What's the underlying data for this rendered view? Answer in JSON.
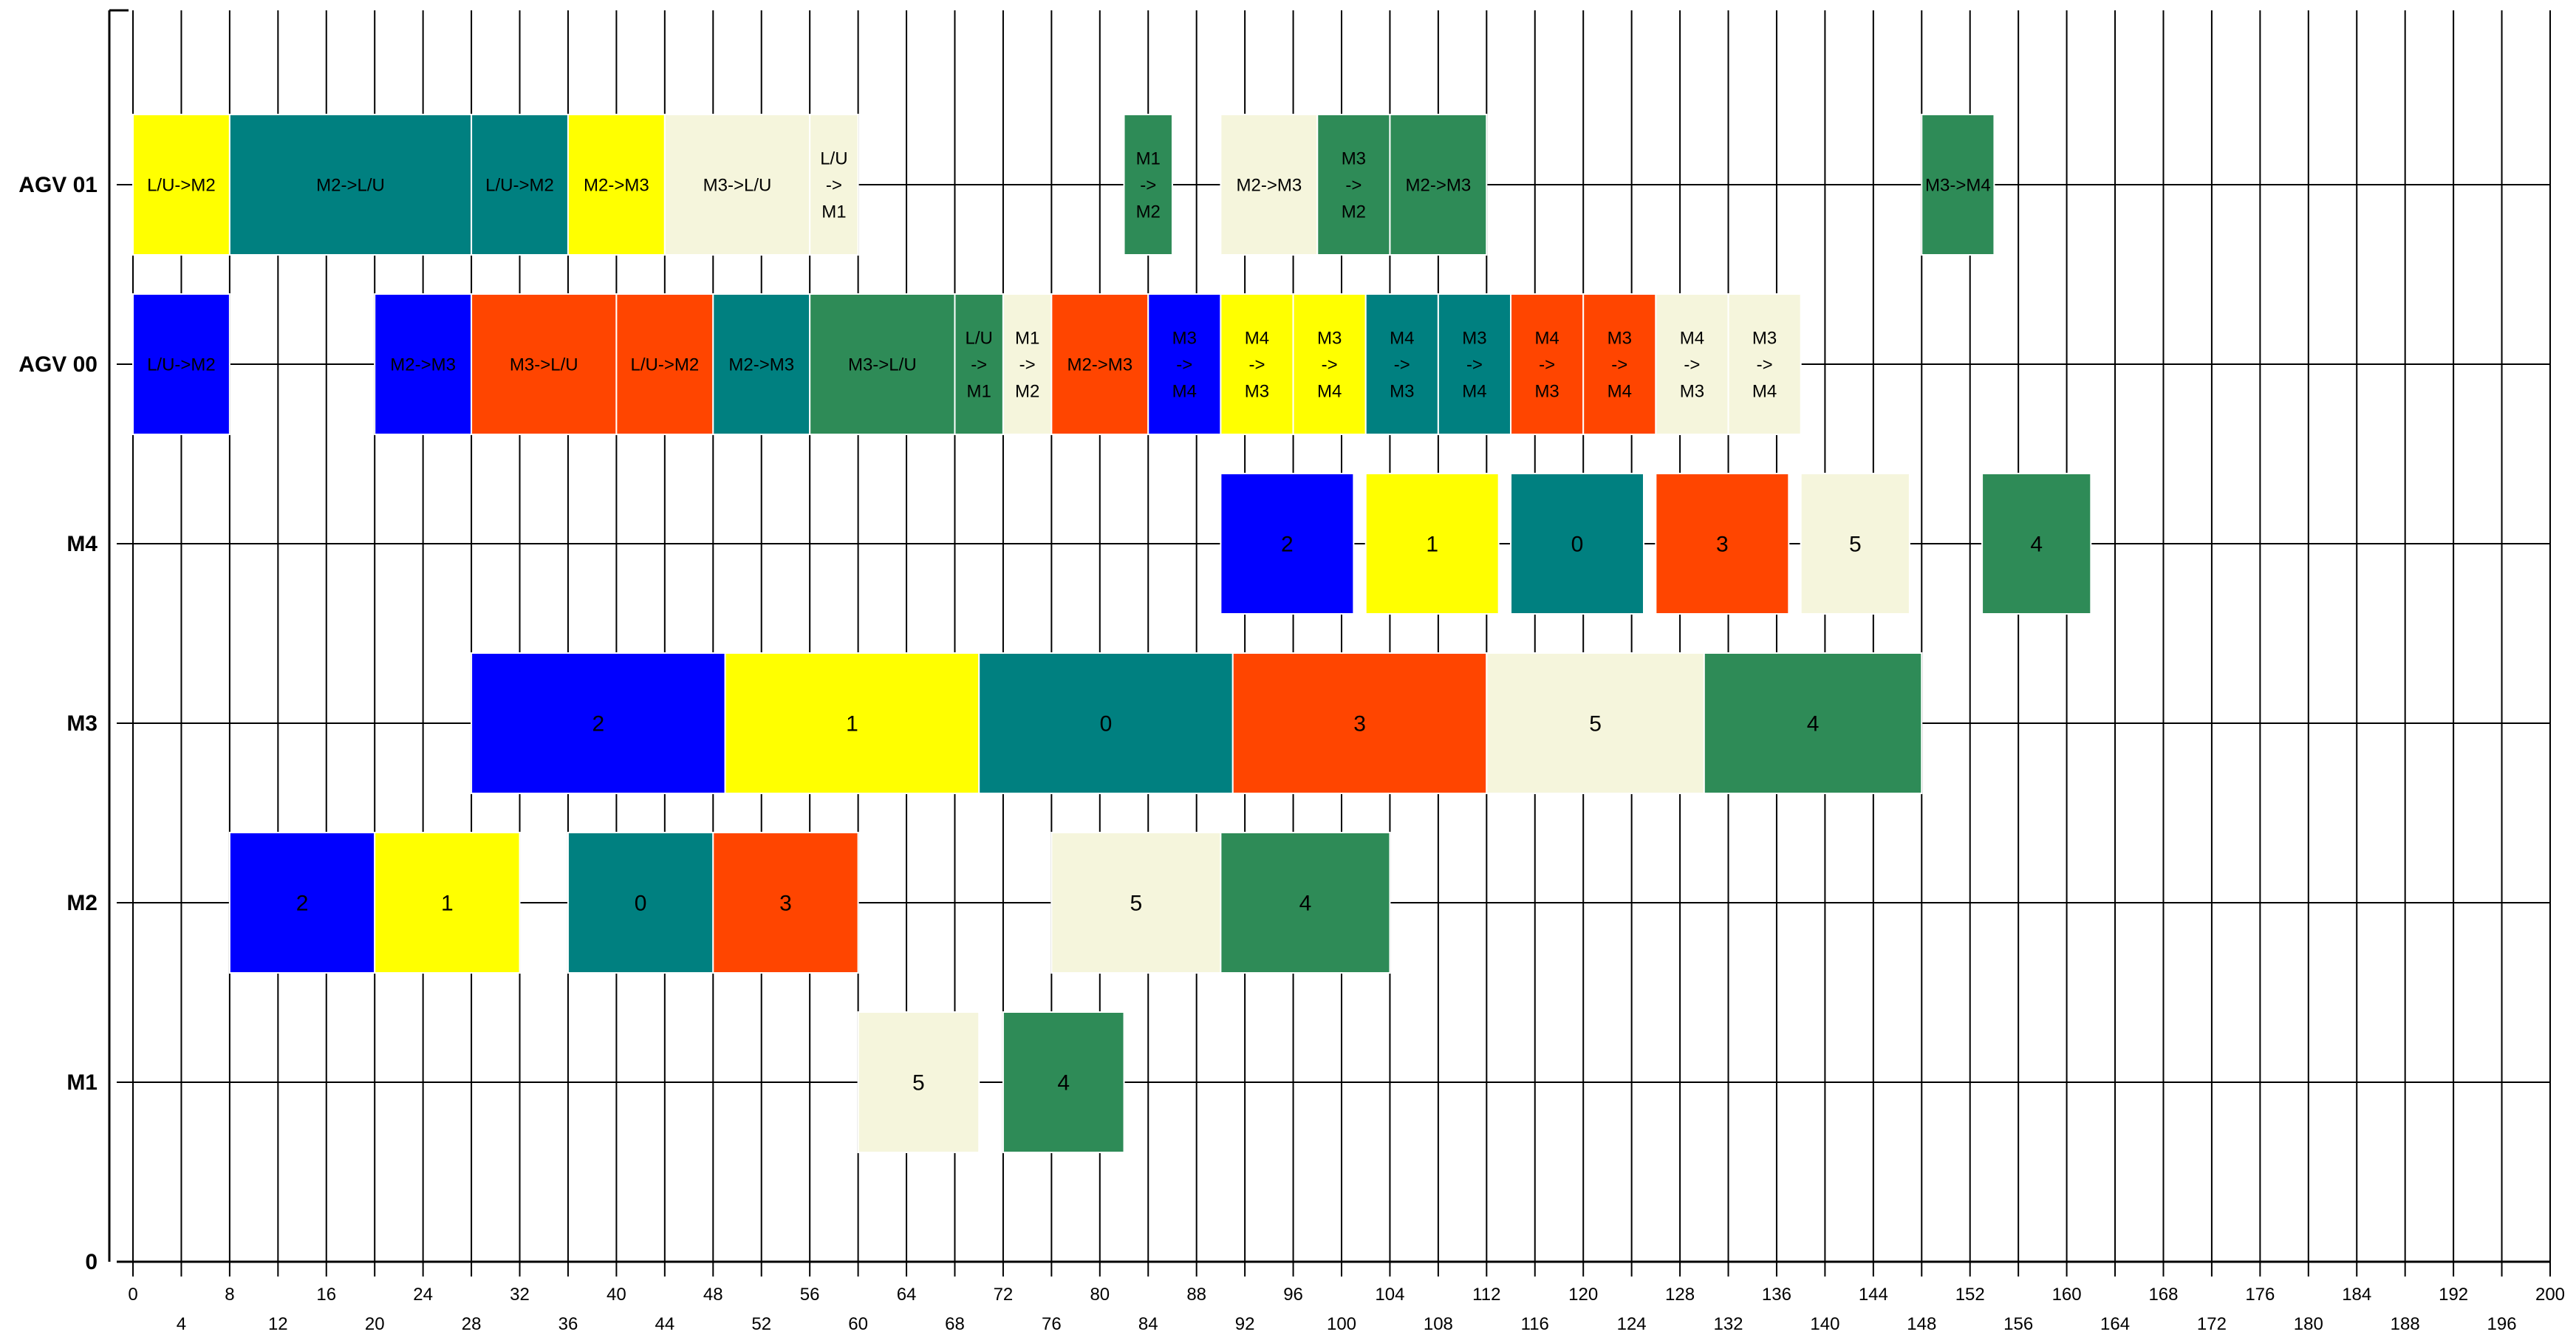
{
  "chart_data": {
    "type": "gantt",
    "xlim": [
      0,
      200
    ],
    "x_tick_step": 4,
    "rows": [
      "0",
      "M1",
      "M2",
      "M3",
      "M4",
      "AGV 00",
      "AGV 01"
    ],
    "colors": {
      "job2": "#0000FF",
      "job1": "#FFFF00",
      "job0": "#008080",
      "job3": "#FF4500",
      "job5": "#F5F5DC",
      "job4": "#2E8B57"
    },
    "tasks": [
      {
        "row": "M1",
        "start": 60,
        "end": 70,
        "label": "5",
        "color": "job5"
      },
      {
        "row": "M1",
        "start": 72,
        "end": 82,
        "label": "4",
        "color": "job4"
      },
      {
        "row": "M2",
        "start": 8,
        "end": 20,
        "label": "2",
        "color": "job2"
      },
      {
        "row": "M2",
        "start": 20,
        "end": 32,
        "label": "1",
        "color": "job1"
      },
      {
        "row": "M2",
        "start": 36,
        "end": 48,
        "label": "0",
        "color": "job0"
      },
      {
        "row": "M2",
        "start": 48,
        "end": 60,
        "label": "3",
        "color": "job3"
      },
      {
        "row": "M2",
        "start": 76,
        "end": 90,
        "label": "5",
        "color": "job5"
      },
      {
        "row": "M2",
        "start": 90,
        "end": 104,
        "label": "4",
        "color": "job4"
      },
      {
        "row": "M3",
        "start": 28,
        "end": 49,
        "label": "2",
        "color": "job2"
      },
      {
        "row": "M3",
        "start": 49,
        "end": 70,
        "label": "1",
        "color": "job1"
      },
      {
        "row": "M3",
        "start": 70,
        "end": 91,
        "label": "0",
        "color": "job0"
      },
      {
        "row": "M3",
        "start": 91,
        "end": 112,
        "label": "3",
        "color": "job3"
      },
      {
        "row": "M3",
        "start": 112,
        "end": 130,
        "label": "5",
        "color": "job5"
      },
      {
        "row": "M3",
        "start": 130,
        "end": 148,
        "label": "4",
        "color": "job4"
      },
      {
        "row": "M4",
        "start": 90,
        "end": 101,
        "label": "2",
        "color": "job2"
      },
      {
        "row": "M4",
        "start": 102,
        "end": 113,
        "label": "1",
        "color": "job1"
      },
      {
        "row": "M4",
        "start": 114,
        "end": 125,
        "label": "0",
        "color": "job0"
      },
      {
        "row": "M4",
        "start": 126,
        "end": 137,
        "label": "3",
        "color": "job3"
      },
      {
        "row": "M4",
        "start": 138,
        "end": 147,
        "label": "5",
        "color": "job5"
      },
      {
        "row": "M4",
        "start": 153,
        "end": 162,
        "label": "4",
        "color": "job4"
      },
      {
        "row": "AGV 00",
        "start": 0,
        "end": 8,
        "label": "L/U->M2",
        "color": "job2"
      },
      {
        "row": "AGV 00",
        "start": 20,
        "end": 28,
        "label": "M2->M3",
        "color": "job2"
      },
      {
        "row": "AGV 00",
        "start": 28,
        "end": 40,
        "label": "M3->L/U",
        "color": "job3"
      },
      {
        "row": "AGV 00",
        "start": 40,
        "end": 48,
        "label": "L/U->M2",
        "color": "job3"
      },
      {
        "row": "AGV 00",
        "start": 48,
        "end": 56,
        "label": "M2->M3",
        "color": "job0"
      },
      {
        "row": "AGV 00",
        "start": 56,
        "end": 68,
        "label": "M3->L/U",
        "color": "job4"
      },
      {
        "row": "AGV 00",
        "start": 68,
        "end": 72,
        "label": "L/U\n->\nM1",
        "color": "job4"
      },
      {
        "row": "AGV 00",
        "start": 72,
        "end": 76,
        "label": "M1\n->\nM2",
        "color": "job5"
      },
      {
        "row": "AGV 00",
        "start": 76,
        "end": 84,
        "label": "M2->M3",
        "color": "job3"
      },
      {
        "row": "AGV 00",
        "start": 84,
        "end": 90,
        "label": "M3\n->\nM4",
        "color": "job2"
      },
      {
        "row": "AGV 00",
        "start": 90,
        "end": 96,
        "label": "M4\n->\nM3",
        "color": "job1"
      },
      {
        "row": "AGV 00",
        "start": 96,
        "end": 102,
        "label": "M3\n->\nM4",
        "color": "job1"
      },
      {
        "row": "AGV 00",
        "start": 102,
        "end": 108,
        "label": "M4\n->\nM3",
        "color": "job0"
      },
      {
        "row": "AGV 00",
        "start": 108,
        "end": 114,
        "label": "M3\n->\nM4",
        "color": "job0"
      },
      {
        "row": "AGV 00",
        "start": 114,
        "end": 120,
        "label": "M4\n->\nM3",
        "color": "job3"
      },
      {
        "row": "AGV 00",
        "start": 120,
        "end": 126,
        "label": "M3\n->\nM4",
        "color": "job3"
      },
      {
        "row": "AGV 00",
        "start": 126,
        "end": 132,
        "label": "M4\n->\nM3",
        "color": "job5"
      },
      {
        "row": "AGV 00",
        "start": 132,
        "end": 138,
        "label": "M3\n->\nM4",
        "color": "job5"
      },
      {
        "row": "AGV 01",
        "start": 0,
        "end": 8,
        "label": "L/U->M2",
        "color": "job1"
      },
      {
        "row": "AGV 01",
        "start": 8,
        "end": 28,
        "label": "M2->L/U",
        "color": "job0"
      },
      {
        "row": "AGV 01",
        "start": 28,
        "end": 36,
        "label": "L/U->M2",
        "color": "job0"
      },
      {
        "row": "AGV 01",
        "start": 36,
        "end": 44,
        "label": "M2->M3",
        "color": "job1"
      },
      {
        "row": "AGV 01",
        "start": 44,
        "end": 56,
        "label": "M3->L/U",
        "color": "job5"
      },
      {
        "row": "AGV 01",
        "start": 56,
        "end": 60,
        "label": "L/U\n->\nM1",
        "color": "job5"
      },
      {
        "row": "AGV 01",
        "start": 82,
        "end": 86,
        "label": "M1\n->\nM2",
        "color": "job4"
      },
      {
        "row": "AGV 01",
        "start": 90,
        "end": 98,
        "label": "M2->M3",
        "color": "job5"
      },
      {
        "row": "AGV 01",
        "start": 98,
        "end": 104,
        "label": "M3\n->\nM2",
        "color": "job4"
      },
      {
        "row": "AGV 01",
        "start": 104,
        "end": 112,
        "label": "M2->M3",
        "color": "job4"
      },
      {
        "row": "AGV 01",
        "start": 148,
        "end": 154,
        "label": "M3->M4",
        "color": "job4"
      }
    ]
  }
}
